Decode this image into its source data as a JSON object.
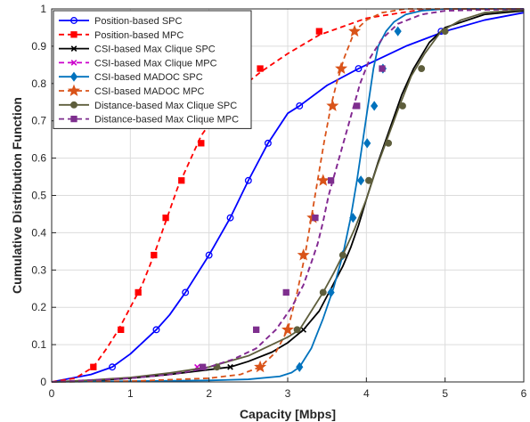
{
  "chart_data": {
    "type": "line",
    "title": "",
    "xlabel": "Capacity [Mbps]",
    "ylabel": "Cumulative Distribution Function",
    "xlim": [
      0,
      6
    ],
    "ylim": [
      0,
      1
    ],
    "xticks": [
      "0",
      "1",
      "2",
      "3",
      "4",
      "5",
      "6"
    ],
    "yticks": [
      "0",
      "0.1",
      "0.2",
      "0.3",
      "0.4",
      "0.5",
      "0.6",
      "0.7",
      "0.8",
      "0.9",
      "1"
    ],
    "grid": true,
    "legend_position": "top-left",
    "series": [
      {
        "name": "Position-based SPC",
        "color": "#0000ff",
        "dash": "solid",
        "marker": "circle",
        "marker_filled": false,
        "curve": {
          "x": [
            0,
            0.5,
            0.77,
            1,
            1.33,
            1.5,
            1.7,
            2.0,
            2.27,
            2.5,
            2.75,
            3.0,
            3.15,
            3.5,
            3.9,
            4.5,
            5.0,
            5.5,
            6.0
          ],
          "y": [
            0,
            0.02,
            0.04,
            0.075,
            0.14,
            0.18,
            0.24,
            0.34,
            0.44,
            0.54,
            0.64,
            0.72,
            0.74,
            0.795,
            0.84,
            0.9,
            0.94,
            0.97,
            0.99
          ]
        },
        "markers": {
          "x": [
            0.77,
            1.33,
            1.7,
            2.0,
            2.27,
            2.5,
            2.75,
            3.15,
            3.9,
            4.95
          ],
          "y": [
            0.04,
            0.14,
            0.24,
            0.34,
            0.44,
            0.54,
            0.64,
            0.74,
            0.84,
            0.94
          ]
        }
      },
      {
        "name": "Position-based MPC",
        "color": "#ff0000",
        "dash": "dashed",
        "marker": "square",
        "marker_filled": true,
        "curve": {
          "x": [
            0,
            0.3,
            0.53,
            0.7,
            0.85,
            1.0,
            1.15,
            1.3,
            1.45,
            1.6,
            1.75,
            1.9,
            2.1,
            2.3,
            2.65,
            3.0,
            3.4,
            4.0,
            4.6,
            5.0,
            6.0
          ],
          "y": [
            0,
            0.01,
            0.04,
            0.09,
            0.14,
            0.2,
            0.26,
            0.34,
            0.43,
            0.52,
            0.59,
            0.66,
            0.72,
            0.77,
            0.83,
            0.88,
            0.93,
            0.975,
            0.995,
            1,
            1
          ]
        },
        "markers": {
          "x": [
            0.53,
            0.88,
            1.1,
            1.3,
            1.45,
            1.65,
            1.9,
            2.65,
            3.4
          ],
          "y": [
            0.04,
            0.14,
            0.24,
            0.34,
            0.44,
            0.54,
            0.64,
            0.84,
            0.94
          ]
        }
      },
      {
        "name": "CSI-based Max Clique SPC",
        "color": "#000000",
        "dash": "solid",
        "marker": "x",
        "marker_filled": false,
        "curve": {
          "x": [
            0,
            0.5,
            1.0,
            1.5,
            2.0,
            2.27,
            2.5,
            2.8,
            3.0,
            3.2,
            3.4,
            3.55,
            3.7,
            3.8,
            3.9,
            4.0,
            4.15,
            4.3,
            4.45,
            4.6,
            4.8,
            5.0,
            5.5,
            6.0
          ],
          "y": [
            0,
            0.003,
            0.01,
            0.02,
            0.033,
            0.04,
            0.055,
            0.08,
            0.105,
            0.14,
            0.19,
            0.25,
            0.31,
            0.36,
            0.42,
            0.49,
            0.59,
            0.68,
            0.77,
            0.84,
            0.91,
            0.95,
            0.985,
            0.995
          ]
        },
        "markers": {
          "x": [
            2.27,
            3.2
          ],
          "y": [
            0.04,
            0.14
          ]
        }
      },
      {
        "name": "CSI-based Max Clique MPC",
        "color": "#cc00cc",
        "dash": "dashed",
        "marker": "x",
        "marker_filled": false,
        "curve": {
          "x": [
            0,
            1.0,
            1.5,
            1.8,
            2.0,
            2.3,
            2.6,
            2.85,
            3.05,
            3.2,
            3.3,
            3.38,
            3.45,
            3.52,
            3.6,
            3.68,
            3.76,
            3.84,
            3.92,
            4.05,
            4.2,
            4.4,
            4.7,
            5.0,
            6.0
          ],
          "y": [
            0,
            0.01,
            0.02,
            0.03,
            0.04,
            0.06,
            0.09,
            0.14,
            0.2,
            0.26,
            0.32,
            0.37,
            0.43,
            0.5,
            0.56,
            0.62,
            0.68,
            0.74,
            0.8,
            0.87,
            0.92,
            0.96,
            0.985,
            0.995,
            1
          ]
        },
        "markers": {
          "x": [
            1.85
          ],
          "y": [
            0.04
          ]
        }
      },
      {
        "name": "CSI-based MADOC SPC",
        "color": "#0072bd",
        "dash": "solid",
        "marker": "diamond",
        "marker_filled": true,
        "curve": {
          "x": [
            0,
            1.0,
            2.0,
            2.5,
            2.9,
            3.05,
            3.15,
            3.3,
            3.45,
            3.58,
            3.7,
            3.8,
            3.88,
            3.95,
            4.02,
            4.09,
            4.15,
            4.25,
            4.35,
            4.5,
            4.7,
            5.0,
            6.0
          ],
          "y": [
            0,
            0.002,
            0.004,
            0.007,
            0.015,
            0.025,
            0.04,
            0.09,
            0.17,
            0.25,
            0.34,
            0.44,
            0.54,
            0.64,
            0.74,
            0.84,
            0.9,
            0.94,
            0.965,
            0.985,
            0.995,
            1,
            1
          ]
        },
        "markers": {
          "x": [
            3.15,
            3.55,
            3.7,
            3.83,
            3.93,
            4.01,
            4.1,
            4.21,
            4.4
          ],
          "y": [
            0.04,
            0.24,
            0.34,
            0.44,
            0.54,
            0.64,
            0.74,
            0.84,
            0.94
          ]
        }
      },
      {
        "name": "CSI-based MADOC MPC",
        "color": "#d95319",
        "dash": "dashed",
        "marker": "star",
        "marker_filled": true,
        "curve": {
          "x": [
            0,
            1.0,
            2.0,
            2.4,
            2.65,
            2.85,
            3.0,
            3.12,
            3.22,
            3.3,
            3.38,
            3.46,
            3.55,
            3.62,
            3.72,
            3.85,
            4.0,
            4.2,
            4.5,
            5.0,
            6.0
          ],
          "y": [
            0,
            0.002,
            0.01,
            0.02,
            0.04,
            0.08,
            0.14,
            0.24,
            0.34,
            0.44,
            0.54,
            0.64,
            0.74,
            0.8,
            0.87,
            0.94,
            0.97,
            0.99,
            1,
            1,
            1
          ]
        },
        "markers": {
          "x": [
            2.65,
            3.0,
            3.2,
            3.32,
            3.45,
            3.57,
            3.68,
            3.85
          ],
          "y": [
            0.04,
            0.14,
            0.34,
            0.44,
            0.54,
            0.74,
            0.84,
            0.94
          ]
        }
      },
      {
        "name": "Distance-based Max Clique SPC",
        "color": "#5e5e3c",
        "dash": "solid",
        "marker": "circle",
        "marker_filled": true,
        "curve": {
          "x": [
            0,
            0.5,
            1.0,
            1.5,
            2.0,
            2.5,
            2.8,
            3.0,
            3.15,
            3.3,
            3.45,
            3.58,
            3.7,
            3.85,
            4.0,
            4.14,
            4.28,
            4.42,
            4.57,
            4.74,
            4.95,
            5.2,
            5.5,
            6.0
          ],
          "y": [
            0,
            0.005,
            0.012,
            0.024,
            0.04,
            0.07,
            0.1,
            0.12,
            0.14,
            0.19,
            0.24,
            0.29,
            0.34,
            0.41,
            0.49,
            0.58,
            0.66,
            0.74,
            0.82,
            0.88,
            0.94,
            0.97,
            0.99,
            0.998
          ]
        },
        "markers": {
          "x": [
            2.1,
            3.12,
            3.45,
            3.7,
            4.03,
            4.28,
            4.46,
            4.7,
            5.0
          ],
          "y": [
            0.04,
            0.14,
            0.24,
            0.34,
            0.54,
            0.64,
            0.74,
            0.84,
            0.94
          ]
        }
      },
      {
        "name": "Distance-based Max Clique MPC",
        "color": "#7e2f8e",
        "dash": "dashed",
        "marker": "square",
        "marker_filled": true,
        "curve": {
          "x": [
            0,
            1.0,
            1.5,
            1.8,
            2.0,
            2.3,
            2.6,
            2.85,
            3.05,
            3.2,
            3.3,
            3.38,
            3.45,
            3.52,
            3.6,
            3.68,
            3.76,
            3.84,
            3.92,
            4.05,
            4.2,
            4.4,
            4.7,
            5.0,
            6.0
          ],
          "y": [
            0,
            0.01,
            0.02,
            0.03,
            0.04,
            0.06,
            0.09,
            0.14,
            0.2,
            0.26,
            0.32,
            0.37,
            0.43,
            0.5,
            0.56,
            0.62,
            0.68,
            0.74,
            0.8,
            0.87,
            0.92,
            0.96,
            0.985,
            0.995,
            1
          ]
        },
        "markers": {
          "x": [
            1.92,
            2.6,
            2.98,
            3.35,
            3.55,
            3.88,
            4.2
          ],
          "y": [
            0.04,
            0.14,
            0.24,
            0.44,
            0.54,
            0.74,
            0.84
          ]
        }
      }
    ]
  }
}
